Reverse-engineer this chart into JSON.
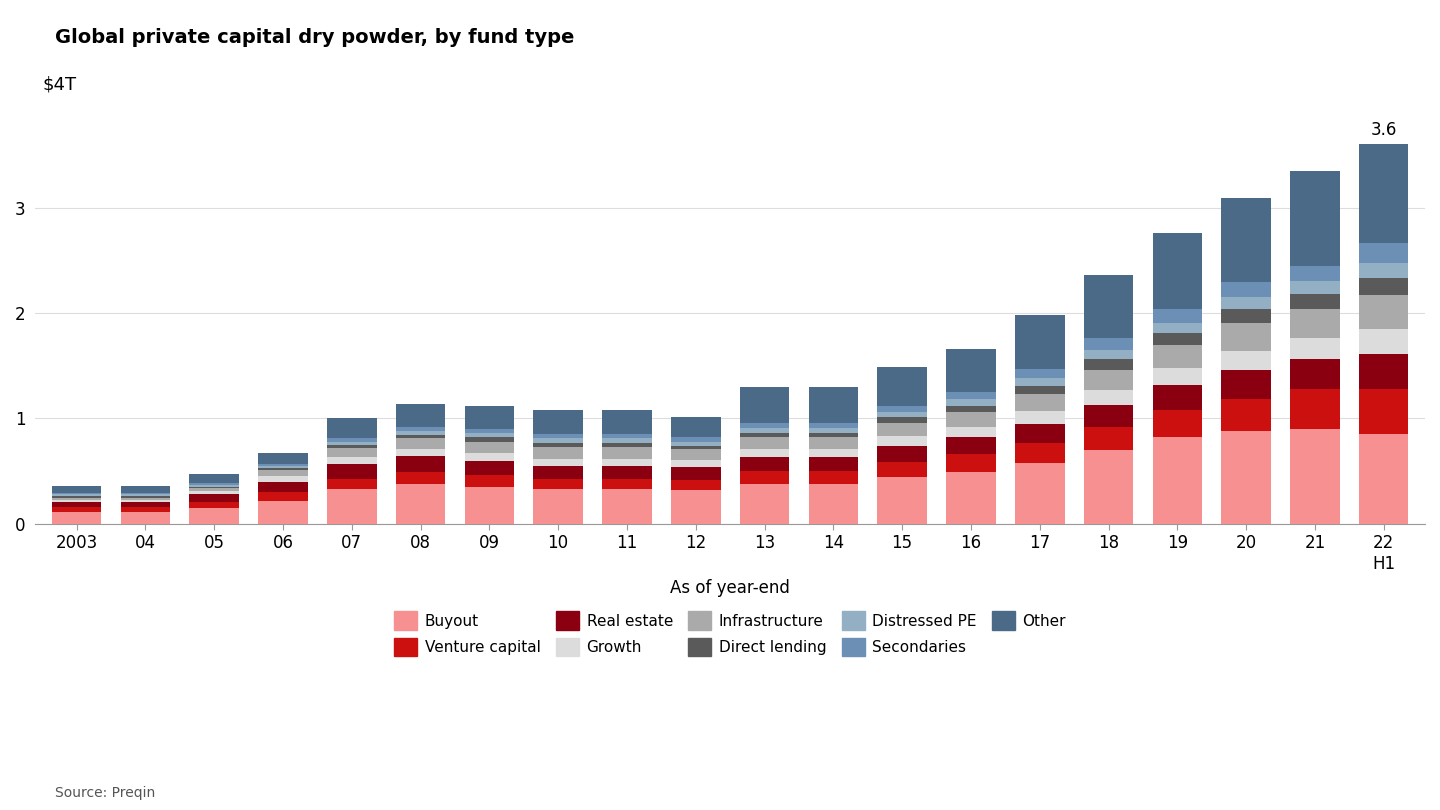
{
  "title": "Global private capital dry powder, by fund type",
  "xlabel": "As of year-end",
  "ylabel_label": "$4T",
  "source": "Source: Preqin",
  "annotation": "3.6",
  "categories": [
    "2003",
    "04",
    "05",
    "06",
    "07",
    "08",
    "09",
    "10",
    "11",
    "12",
    "13",
    "14",
    "15",
    "16",
    "17",
    "18",
    "19",
    "20",
    "21",
    "22\nH1"
  ],
  "fund_types": [
    "Buyout",
    "Venture capital",
    "Real estate",
    "Growth",
    "Infrastructure",
    "Direct lending",
    "Distressed PE",
    "Secondaries",
    "Other"
  ],
  "colors": [
    "#F79090",
    "#CC1010",
    "#8B0010",
    "#DCDCDC",
    "#AAAAAA",
    "#5A5A5A",
    "#93AFC4",
    "#6B8FB5",
    "#4A6A88"
  ],
  "data": {
    "Buyout": [
      0.11,
      0.11,
      0.15,
      0.22,
      0.33,
      0.38,
      0.35,
      0.33,
      0.33,
      0.32,
      0.38,
      0.38,
      0.44,
      0.49,
      0.58,
      0.7,
      0.82,
      0.88,
      0.9,
      0.85
    ],
    "Venture capital": [
      0.05,
      0.05,
      0.06,
      0.08,
      0.1,
      0.11,
      0.11,
      0.1,
      0.1,
      0.1,
      0.12,
      0.12,
      0.15,
      0.17,
      0.19,
      0.22,
      0.26,
      0.3,
      0.38,
      0.43
    ],
    "Real estate": [
      0.05,
      0.05,
      0.07,
      0.1,
      0.14,
      0.15,
      0.14,
      0.12,
      0.12,
      0.12,
      0.13,
      0.13,
      0.15,
      0.16,
      0.18,
      0.21,
      0.24,
      0.28,
      0.28,
      0.33
    ],
    "Growth": [
      0.02,
      0.02,
      0.03,
      0.05,
      0.06,
      0.07,
      0.07,
      0.07,
      0.07,
      0.07,
      0.08,
      0.08,
      0.09,
      0.1,
      0.12,
      0.14,
      0.16,
      0.18,
      0.2,
      0.24
    ],
    "Infrastructure": [
      0.02,
      0.02,
      0.03,
      0.06,
      0.09,
      0.1,
      0.11,
      0.11,
      0.11,
      0.1,
      0.11,
      0.11,
      0.13,
      0.14,
      0.16,
      0.19,
      0.22,
      0.27,
      0.28,
      0.32
    ],
    "Direct lending": [
      0.01,
      0.01,
      0.01,
      0.02,
      0.03,
      0.03,
      0.04,
      0.04,
      0.04,
      0.03,
      0.04,
      0.04,
      0.05,
      0.06,
      0.08,
      0.1,
      0.11,
      0.13,
      0.14,
      0.16
    ],
    "Distressed PE": [
      0.02,
      0.02,
      0.02,
      0.02,
      0.03,
      0.04,
      0.04,
      0.04,
      0.04,
      0.04,
      0.05,
      0.05,
      0.05,
      0.06,
      0.07,
      0.09,
      0.1,
      0.11,
      0.12,
      0.14
    ],
    "Secondaries": [
      0.01,
      0.01,
      0.02,
      0.02,
      0.03,
      0.04,
      0.04,
      0.04,
      0.04,
      0.04,
      0.05,
      0.05,
      0.06,
      0.07,
      0.09,
      0.11,
      0.13,
      0.14,
      0.15,
      0.19
    ],
    "Other": [
      0.07,
      0.07,
      0.08,
      0.1,
      0.19,
      0.22,
      0.22,
      0.23,
      0.23,
      0.19,
      0.34,
      0.34,
      0.37,
      0.41,
      0.51,
      0.6,
      0.72,
      0.8,
      0.9,
      0.94
    ]
  },
  "ylim": [
    0,
    4.0
  ],
  "yticks": [
    0,
    1,
    2,
    3
  ],
  "bar_width": 0.72,
  "figsize": [
    14.4,
    8.1
  ],
  "dpi": 100,
  "title_fontsize": 14,
  "tick_fontsize": 12,
  "label_fontsize": 12,
  "legend_fontsize": 11
}
